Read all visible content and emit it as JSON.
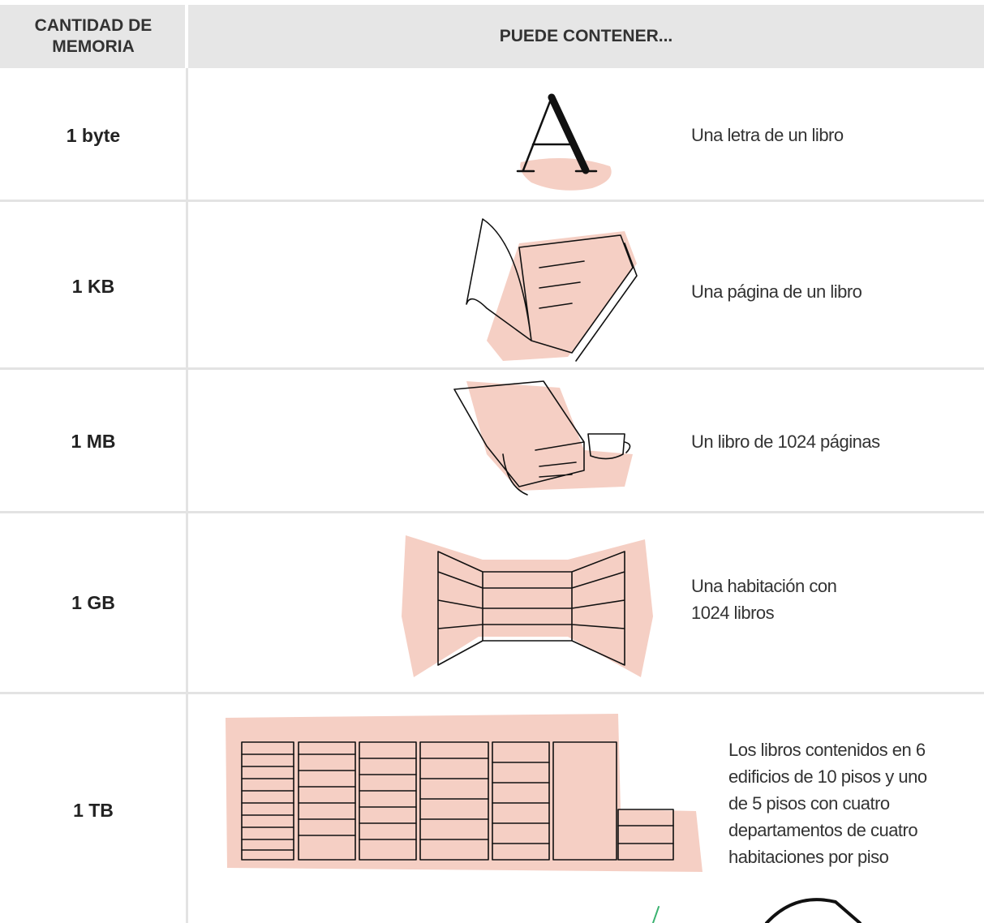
{
  "table": {
    "header": [
      "CANTIDAD DE MEMORIA",
      "PUEDE CONTENER..."
    ],
    "rows": [
      [
        "1 byte",
        "Una letra de un libro"
      ],
      [
        "1 KB",
        "Una página de un libro"
      ],
      [
        "1 MB",
        "Un libro de 1024 páginas"
      ],
      [
        "1 GB",
        "Una habitación con 1024 libros"
      ],
      [
        "1 TB",
        "Los libros contenidos en 6 edificios de 10 pisos y uno de 5 pisos con cuatro departamentos de cuatro habitaciones por piso"
      ]
    ]
  }
}
